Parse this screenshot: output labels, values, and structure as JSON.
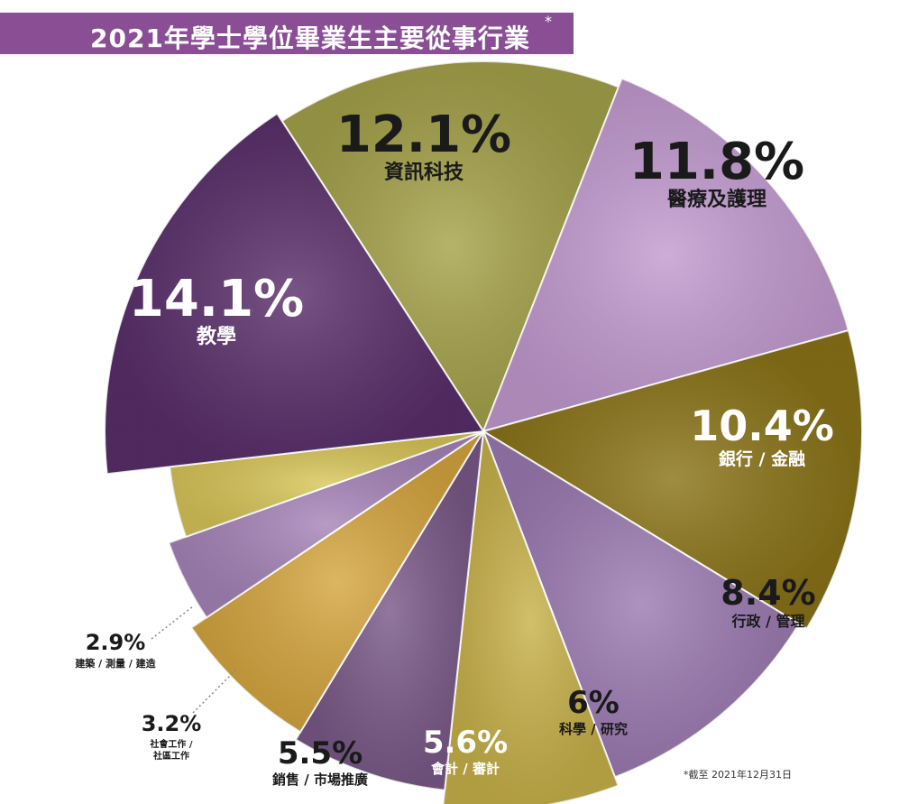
{
  "title": "2021年學士學位畢業生主要從事行業",
  "title_marker": "*",
  "footnote": "*截至 2021年12月31日",
  "chart_data": {
    "type": "pie",
    "title": "2021年學士學位畢業生主要從事行業",
    "unit": "%",
    "slices": [
      {
        "label": "資訊科技",
        "value": 12.1,
        "value_text": "12.1%",
        "color": "#a5a24a"
      },
      {
        "label": "醫療及護理",
        "value": 11.8,
        "value_text": "11.8%",
        "color": "#c39bd0"
      },
      {
        "label": "銀行 / 金融",
        "value": 10.4,
        "value_text": "10.4%",
        "color": "#8a7418"
      },
      {
        "label": "行政 / 管理",
        "value": 8.4,
        "value_text": "8.4%",
        "color": "#9c7bb2"
      },
      {
        "label": "科學 / 研究",
        "value": 6,
        "value_text": "6%",
        "color": "#c8b24a"
      },
      {
        "label": "會計 / 審計",
        "value": 5.6,
        "value_text": "5.6%",
        "color": "#7a5a88"
      },
      {
        "label": "銷售 / 市場推廣",
        "value": 5.5,
        "value_text": "5.5%",
        "color": "#d6a640"
      },
      {
        "label": "社會工作 / 社區工作",
        "value": 3.2,
        "value_text": "3.2%",
        "color": "#a685b8"
      },
      {
        "label": "建築 / 測量 / 建造",
        "value": 2.9,
        "value_text": "2.9%",
        "color": "#d9c65a"
      },
      {
        "label": "教學",
        "value": 14.1,
        "value_text": "14.1%",
        "color": "#5a2f6b"
      }
    ]
  }
}
